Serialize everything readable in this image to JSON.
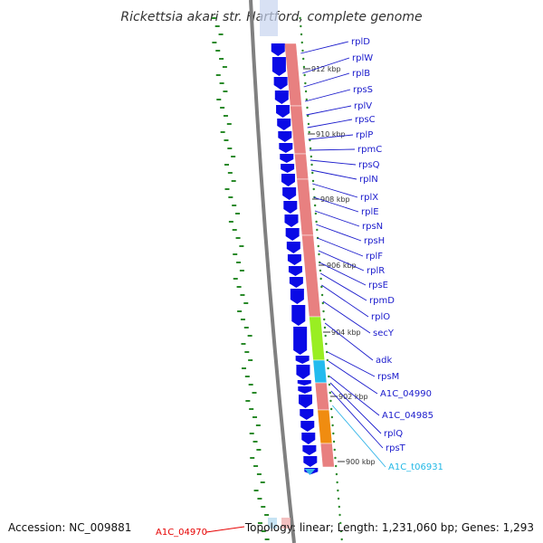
{
  "title": "Rickettsia akari str. Hartford, complete genome",
  "footer": {
    "accession": "Accession: NC_009881",
    "summary": "Topology: linear; Length: 1,231,060 bp; Genes: 1,293"
  },
  "red_label": "A1C_04970",
  "ticks": [
    "912 kbp",
    "910 kbp",
    "908 kbp",
    "906 kbp",
    "904 kbp",
    "902 kbp",
    "900 kbp"
  ],
  "colors": {
    "forward_gene": "#0a0ae6",
    "rna_track": "#e88080",
    "secY": "#99ee22",
    "adk": "#22bbee",
    "A1C_04985": "#f08c10",
    "tRNA": "#33b5e8",
    "gc_dots": "#2a8a2a",
    "backbone": "#808080"
  },
  "genes": [
    {
      "name": "rplD",
      "type": "normal"
    },
    {
      "name": "rplW",
      "type": "normal"
    },
    {
      "name": "rplB",
      "type": "normal"
    },
    {
      "name": "rpsS",
      "type": "normal"
    },
    {
      "name": "rplV",
      "type": "normal"
    },
    {
      "name": "rpsC",
      "type": "normal"
    },
    {
      "name": "rplP",
      "type": "normal"
    },
    {
      "name": "rpmC",
      "type": "normal"
    },
    {
      "name": "rpsQ",
      "type": "normal"
    },
    {
      "name": "rplN",
      "type": "normal"
    },
    {
      "name": "rplX",
      "type": "normal"
    },
    {
      "name": "rplE",
      "type": "normal"
    },
    {
      "name": "rpsN",
      "type": "normal"
    },
    {
      "name": "rpsH",
      "type": "normal"
    },
    {
      "name": "rplF",
      "type": "normal"
    },
    {
      "name": "rplR",
      "type": "normal"
    },
    {
      "name": "rpsE",
      "type": "normal"
    },
    {
      "name": "rpmD",
      "type": "normal"
    },
    {
      "name": "rplO",
      "type": "normal"
    },
    {
      "name": "secY",
      "type": "normal"
    },
    {
      "name": "adk",
      "type": "normal"
    },
    {
      "name": "rpsM",
      "type": "normal"
    },
    {
      "name": "A1C_04990",
      "type": "normal"
    },
    {
      "name": "A1C_04985",
      "type": "normal"
    },
    {
      "name": "rplQ",
      "type": "normal"
    },
    {
      "name": "rpsT",
      "type": "normal"
    },
    {
      "name": "A1C_t06931",
      "type": "trna"
    }
  ]
}
